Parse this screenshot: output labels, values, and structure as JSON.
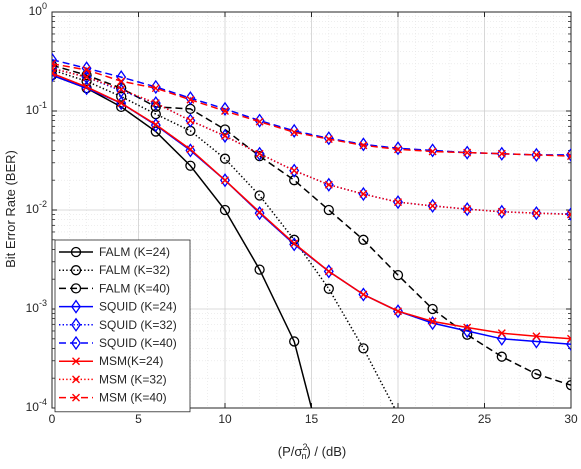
{
  "chart_data": {
    "type": "line",
    "yscale": "log",
    "xlabel": "(P/σ²ₙ) / (dB)",
    "ylabel": "Bit Error Rate (BER)",
    "xlim": [
      0,
      30
    ],
    "ylim": [
      0.0001,
      1
    ],
    "x_ticks": [
      0,
      5,
      10,
      15,
      20,
      25,
      30
    ],
    "x_tick_labels": [
      "0",
      "5",
      "10",
      "15",
      "20",
      "25",
      "30"
    ],
    "y_ticks": [
      1,
      0.1,
      0.01,
      0.001,
      0.0001
    ],
    "y_tick_labels": [
      {
        "base": "10",
        "exp": "0"
      },
      {
        "base": "10",
        "exp": "-1"
      },
      {
        "base": "10",
        "exp": "-2"
      },
      {
        "base": "10",
        "exp": "-3"
      },
      {
        "base": "10",
        "exp": "-4"
      }
    ],
    "grid": true,
    "legend_position": "bottom-left",
    "series": [
      {
        "name": "FALM (K=24)",
        "color": "#000000",
        "dash": "solid",
        "marker": "circle",
        "x": [
          0,
          2,
          4,
          6,
          8,
          10,
          12,
          14,
          15
        ],
        "y": [
          0.23,
          0.17,
          0.11,
          0.062,
          0.028,
          0.01,
          0.0025,
          0.00047,
          0.0001
        ]
      },
      {
        "name": "FALM (K=32)",
        "color": "#000000",
        "dash": "dotted",
        "marker": "circle",
        "x": [
          0,
          2,
          4,
          6,
          8,
          10,
          12,
          14,
          16,
          18,
          19.8
        ],
        "y": [
          0.26,
          0.2,
          0.14,
          0.093,
          0.063,
          0.033,
          0.014,
          0.005,
          0.0016,
          0.0004,
          0.0001
        ]
      },
      {
        "name": "FALM (K=40)",
        "color": "#000000",
        "dash": "dashed",
        "marker": "circle",
        "x": [
          0,
          2,
          4,
          6,
          8,
          10,
          12,
          14,
          16,
          18,
          20,
          22,
          24,
          26,
          28,
          30
        ],
        "y": [
          0.29,
          0.23,
          0.17,
          0.11,
          0.105,
          0.065,
          0.035,
          0.02,
          0.01,
          0.005,
          0.0022,
          0.001,
          0.00055,
          0.00033,
          0.00022,
          0.00017
        ]
      },
      {
        "name": "SQUID (K=24)",
        "color": "#0000ff",
        "dash": "solid",
        "marker": "diamond",
        "x": [
          0,
          2,
          4,
          6,
          8,
          10,
          12,
          14,
          16,
          18,
          20,
          22,
          24,
          26,
          28,
          30
        ],
        "y": [
          0.23,
          0.17,
          0.12,
          0.072,
          0.04,
          0.02,
          0.0093,
          0.0045,
          0.0024,
          0.0014,
          0.00095,
          0.00072,
          0.0006,
          0.0005,
          0.00047,
          0.00044
        ]
      },
      {
        "name": "SQUID (K=32)",
        "color": "#0000ff",
        "dash": "dotted",
        "marker": "diamond",
        "x": [
          0,
          2,
          4,
          6,
          8,
          10,
          12,
          14,
          16,
          18,
          20,
          22,
          24,
          26,
          28,
          30
        ],
        "y": [
          0.27,
          0.22,
          0.16,
          0.12,
          0.08,
          0.056,
          0.037,
          0.025,
          0.018,
          0.0145,
          0.012,
          0.011,
          0.0102,
          0.0096,
          0.0093,
          0.0091
        ]
      },
      {
        "name": "SQUID (K=40)",
        "color": "#0000ff",
        "dash": "dashed",
        "marker": "diamond",
        "x": [
          0,
          2,
          4,
          6,
          8,
          10,
          12,
          14,
          16,
          18,
          20,
          22,
          24,
          26,
          28,
          30
        ],
        "y": [
          0.33,
          0.27,
          0.22,
          0.175,
          0.135,
          0.105,
          0.08,
          0.063,
          0.053,
          0.046,
          0.042,
          0.04,
          0.038,
          0.037,
          0.036,
          0.036
        ]
      },
      {
        "name": "MSM(K=24)",
        "color": "#ff0000",
        "dash": "solid",
        "marker": "x",
        "x": [
          0,
          2,
          4,
          6,
          8,
          10,
          12,
          14,
          16,
          18,
          20,
          22,
          24,
          26,
          28,
          30
        ],
        "y": [
          0.24,
          0.175,
          0.12,
          0.073,
          0.041,
          0.02,
          0.0095,
          0.0046,
          0.0024,
          0.0014,
          0.00095,
          0.00075,
          0.00065,
          0.00057,
          0.00053,
          0.0005
        ]
      },
      {
        "name": "MSM (K=32)",
        "color": "#ff0000",
        "dash": "dotted",
        "marker": "x",
        "x": [
          0,
          2,
          4,
          6,
          8,
          10,
          12,
          14,
          16,
          18,
          20,
          22,
          24,
          26,
          28,
          30
        ],
        "y": [
          0.27,
          0.22,
          0.165,
          0.12,
          0.08,
          0.056,
          0.037,
          0.025,
          0.018,
          0.0145,
          0.012,
          0.011,
          0.0102,
          0.0096,
          0.0093,
          0.009
        ]
      },
      {
        "name": "MSM (K=40)",
        "color": "#ff0000",
        "dash": "dashed",
        "marker": "x",
        "x": [
          0,
          2,
          4,
          6,
          8,
          10,
          12,
          14,
          16,
          18,
          20,
          22,
          24,
          26,
          28,
          30
        ],
        "y": [
          0.3,
          0.26,
          0.2,
          0.17,
          0.13,
          0.1,
          0.078,
          0.061,
          0.052,
          0.045,
          0.041,
          0.039,
          0.038,
          0.037,
          0.036,
          0.035
        ]
      }
    ]
  }
}
